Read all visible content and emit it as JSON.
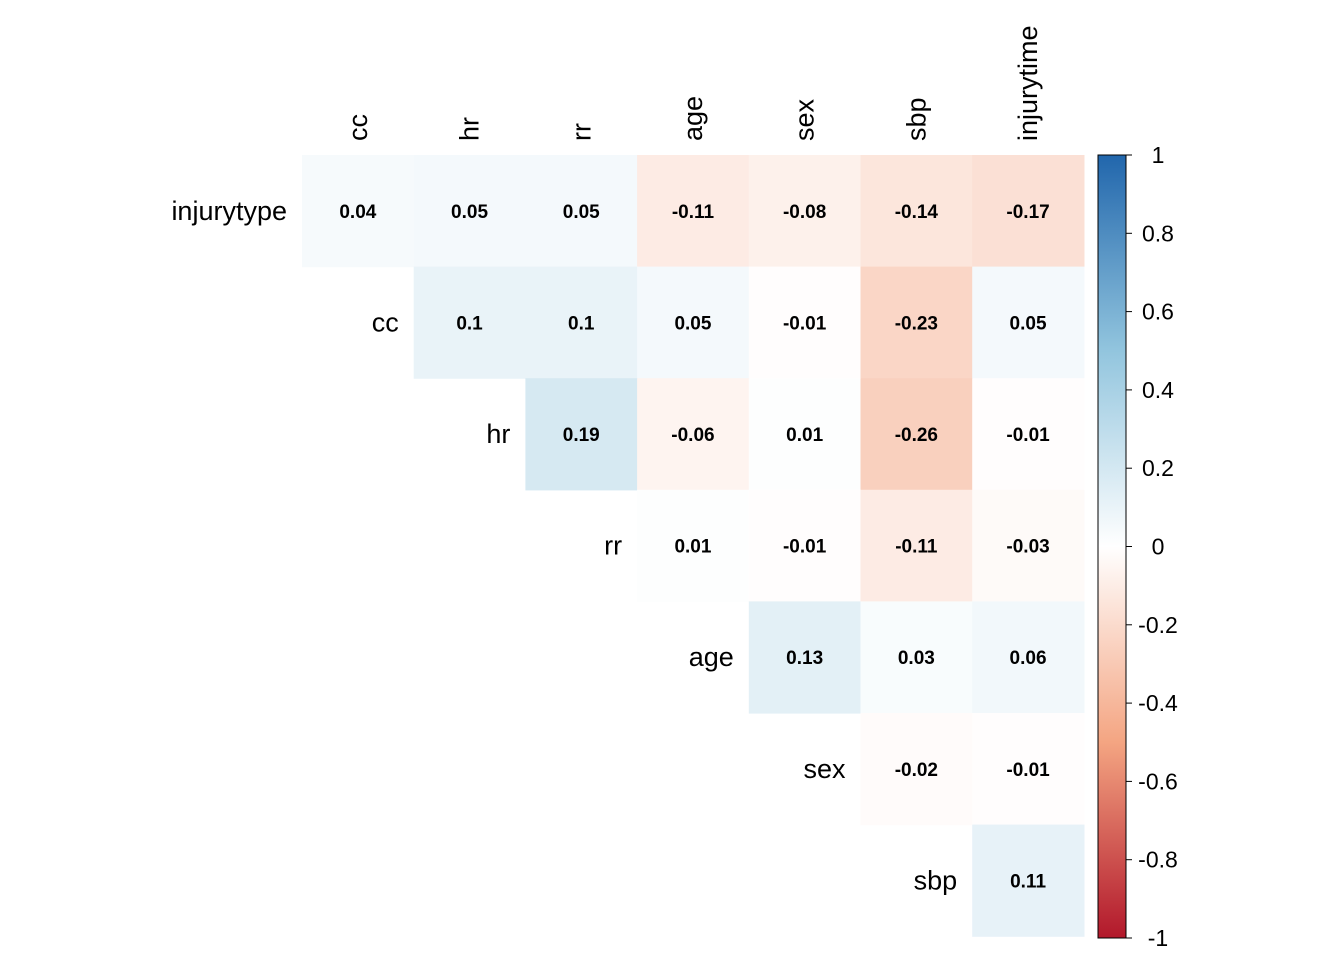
{
  "chart_data": {
    "type": "heatmap",
    "variables": [
      "injurytype",
      "cc",
      "hr",
      "rr",
      "age",
      "sex",
      "sbp",
      "injurytime"
    ],
    "rows": [
      "injurytype",
      "cc",
      "hr",
      "rr",
      "age",
      "sex",
      "sbp"
    ],
    "columns": [
      "cc",
      "hr",
      "rr",
      "age",
      "sex",
      "sbp",
      "injurytime"
    ],
    "matrix": [
      [
        0.04,
        0.05,
        0.05,
        -0.11,
        -0.08,
        -0.14,
        -0.17
      ],
      [
        null,
        0.1,
        0.1,
        0.05,
        -0.01,
        -0.23,
        0.05
      ],
      [
        null,
        null,
        0.19,
        -0.06,
        0.01,
        -0.26,
        -0.01
      ],
      [
        null,
        null,
        null,
        0.01,
        -0.01,
        -0.11,
        -0.03
      ],
      [
        null,
        null,
        null,
        null,
        0.13,
        0.03,
        0.06
      ],
      [
        null,
        null,
        null,
        null,
        null,
        -0.02,
        -0.01
      ],
      [
        null,
        null,
        null,
        null,
        null,
        null,
        0.11
      ]
    ],
    "value_labels": [
      [
        "0.04",
        "0.05",
        "0.05",
        "-0.11",
        "-0.08",
        "-0.14",
        "-0.17"
      ],
      [
        null,
        "0.1",
        "0.1",
        "0.05",
        "-0.01",
        "-0.23",
        "0.05"
      ],
      [
        null,
        null,
        "0.19",
        "-0.06",
        "0.01",
        "-0.26",
        "-0.01"
      ],
      [
        null,
        null,
        null,
        "0.01",
        "-0.01",
        "-0.11",
        "-0.03"
      ],
      [
        null,
        null,
        null,
        null,
        "0.13",
        "0.03",
        "0.06"
      ],
      [
        null,
        null,
        null,
        null,
        null,
        "-0.02",
        "-0.01"
      ],
      [
        null,
        null,
        null,
        null,
        null,
        null,
        "0.11"
      ]
    ],
    "legend": {
      "min": -1,
      "max": 1,
      "ticks": [
        "1",
        "0.8",
        "0.6",
        "0.4",
        "0.2",
        "0",
        "-0.2",
        "-0.4",
        "-0.6",
        "-0.8",
        "-1"
      ],
      "tick_values": [
        1,
        0.8,
        0.6,
        0.4,
        0.2,
        0,
        -0.2,
        -0.4,
        -0.6,
        -0.8,
        -1
      ],
      "placement": "right"
    },
    "colors": {
      "negative_end": "#b2182b",
      "negative_mid": "#f4a582",
      "neutral": "#ffffff",
      "positive_mid": "#92c5de",
      "positive_end": "#2166ac"
    },
    "grid": false,
    "layout": "upper-triangle"
  }
}
